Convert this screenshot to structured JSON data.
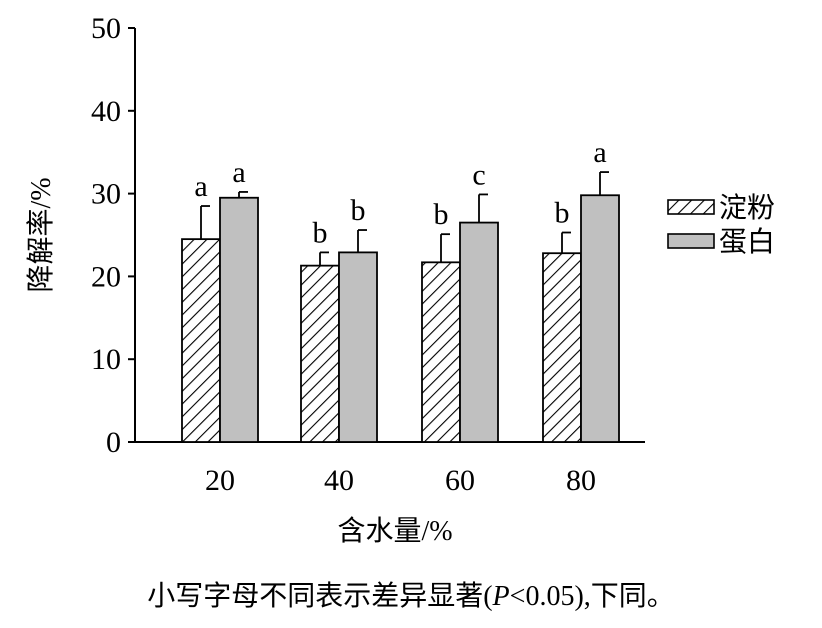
{
  "chart_data": {
    "type": "bar",
    "categories": [
      "20",
      "40",
      "60",
      "80"
    ],
    "xlabel": "含水量/%",
    "ylabel": "降解率/%",
    "ylim": [
      0,
      50
    ],
    "yticks": [
      "0",
      "10",
      "20",
      "30",
      "40",
      "50"
    ],
    "legend_position": "right",
    "grid": false,
    "series": [
      {
        "name": "淀粉",
        "pattern": "hatched",
        "color": "#ffffff",
        "values": [
          24.5,
          21.3,
          21.7,
          22.8
        ],
        "errors": [
          4.0,
          1.6,
          3.4,
          2.5
        ],
        "letters": [
          "a",
          "b",
          "b",
          "b"
        ]
      },
      {
        "name": "蛋白",
        "pattern": "solid",
        "color": "#c0c0c0",
        "values": [
          29.5,
          22.9,
          26.5,
          29.8
        ],
        "errors": [
          0.7,
          2.7,
          3.4,
          2.8
        ],
        "letters": [
          "a",
          "b",
          "c",
          "a"
        ]
      }
    ]
  },
  "caption": {
    "text": "小写字母不同表示差异显著(P<0.05),下同。",
    "prefix": "小写字母不同表示差异显著(",
    "p_symbol": "P",
    "comparison": "<0.05",
    "suffix": "),下同。"
  }
}
